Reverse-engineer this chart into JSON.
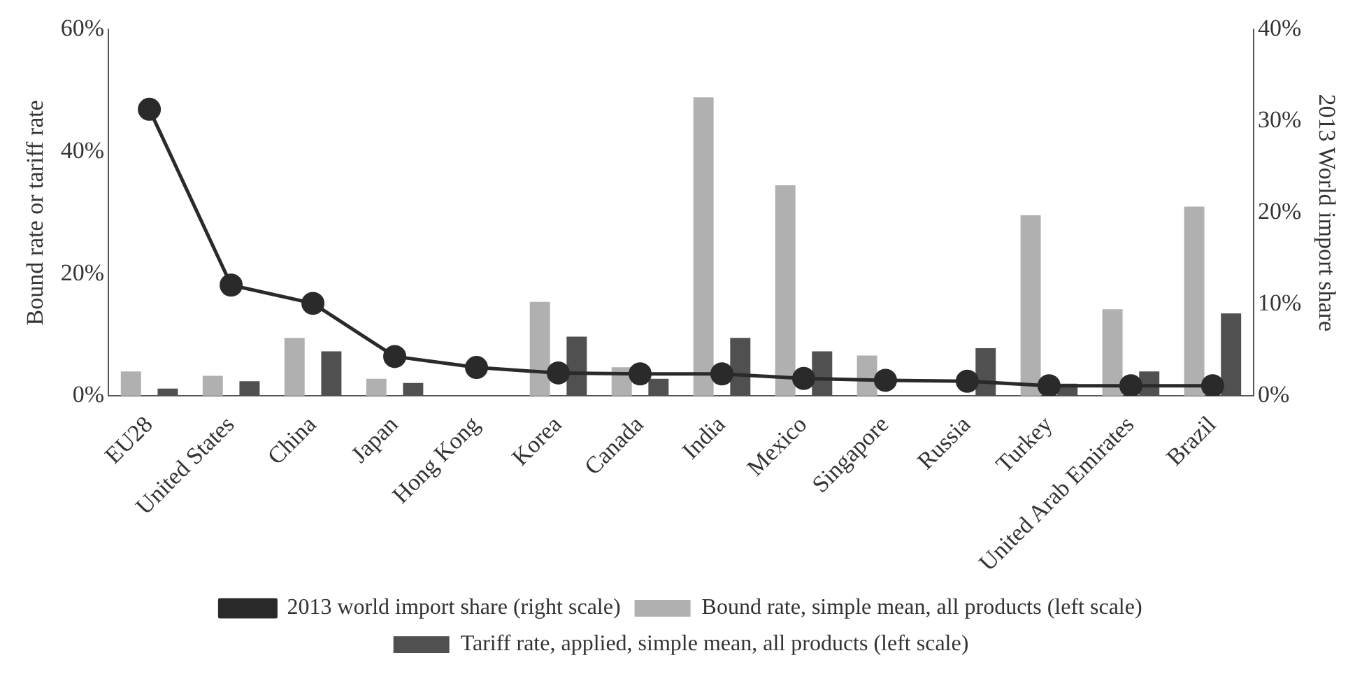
{
  "chart_data": {
    "type": "bar",
    "ylabel": "Bound rate or tariff rate",
    "y2label": "2013 World import share",
    "categories": [
      "EU28",
      "United States",
      "China",
      "Japan",
      "Hong Kong",
      "Korea",
      "Canada",
      "India",
      "Mexico",
      "Singapore",
      "Russia",
      "Turkey",
      "United Arab Emirates",
      "Brazil"
    ],
    "series": [
      {
        "name": "Bound rate, simple mean, all products (left scale)",
        "color": "#b0b0b0",
        "values": [
          4.0,
          3.3,
          9.5,
          2.8,
          null,
          15.4,
          4.7,
          48.9,
          34.5,
          6.6,
          null,
          29.6,
          14.2,
          31.0
        ]
      },
      {
        "name": "Tariff rate, applied, simple mean, all products (left scale)",
        "color": "#505050",
        "values": [
          1.2,
          2.4,
          7.3,
          2.1,
          null,
          9.7,
          2.8,
          9.5,
          7.3,
          null,
          7.8,
          2.0,
          4.0,
          13.5
        ]
      },
      {
        "name": "2013 world import share (right scale)",
        "type": "line",
        "axis": "y2",
        "color": "#2a2a2a",
        "values": [
          31.3,
          12.1,
          10.1,
          4.3,
          3.1,
          2.5,
          2.4,
          2.4,
          1.9,
          1.7,
          1.6,
          1.1,
          1.1,
          1.1
        ]
      }
    ],
    "ylim": [
      0,
      60
    ],
    "yticks": [
      {
        "value": 0,
        "label": "0%"
      },
      {
        "value": 20,
        "label": "20%"
      },
      {
        "value": 40,
        "label": "40%"
      },
      {
        "value": 60,
        "label": "60%"
      }
    ],
    "y2lim": [
      0,
      40
    ],
    "y2ticks": [
      {
        "value": 0,
        "label": "0%"
      },
      {
        "value": 10,
        "label": "10%"
      },
      {
        "value": 20,
        "label": "20%"
      },
      {
        "value": 30,
        "label": "30%"
      },
      {
        "value": 40,
        "label": "40%"
      }
    ],
    "grid": false,
    "legend": "bottom",
    "marker": "circle",
    "line_style": "solid"
  }
}
